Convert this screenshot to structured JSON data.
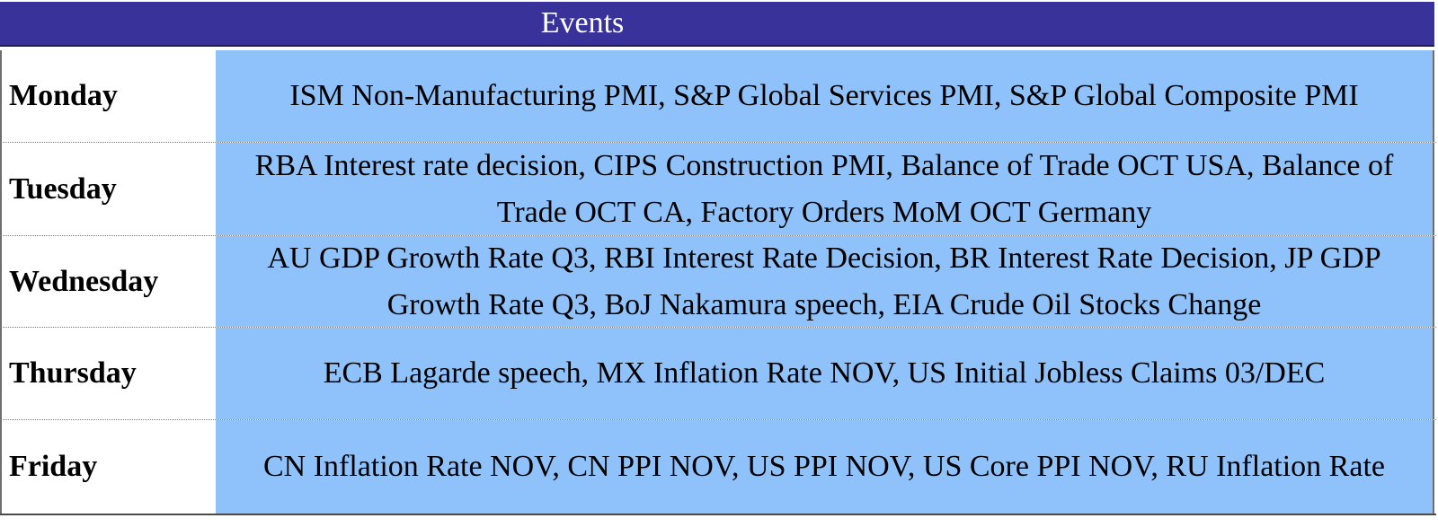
{
  "header": {
    "events_label": "Events"
  },
  "rows": [
    {
      "day": "Monday",
      "events": "ISM Non-Manufacturing PMI, S&P Global Services PMI, S&P Global Composite PMI"
    },
    {
      "day": "Tuesday",
      "events": "RBA Interest rate decision, CIPS Construction PMI, Balance of Trade OCT USA, Balance of Trade OCT CA, Factory Orders MoM OCT Germany"
    },
    {
      "day": "Wednesday",
      "events": "AU GDP Growth Rate Q3, RBI Interest Rate Decision, BR Interest Rate Decision,  JP GDP Growth Rate Q3, BoJ Nakamura speech, EIA Crude Oil Stocks Change"
    },
    {
      "day": "Thursday",
      "events": "ECB Lagarde speech, MX Inflation Rate NOV, US Initial Jobless Claims 03/DEC"
    },
    {
      "day": "Friday",
      "events": "CN Inflation Rate NOV, CN PPI NOV, US PPI NOV, US Core PPI NOV, RU Inflation Rate"
    }
  ],
  "colors": {
    "header_bg": "#39329a",
    "event_bg": "#8fc2fb"
  }
}
